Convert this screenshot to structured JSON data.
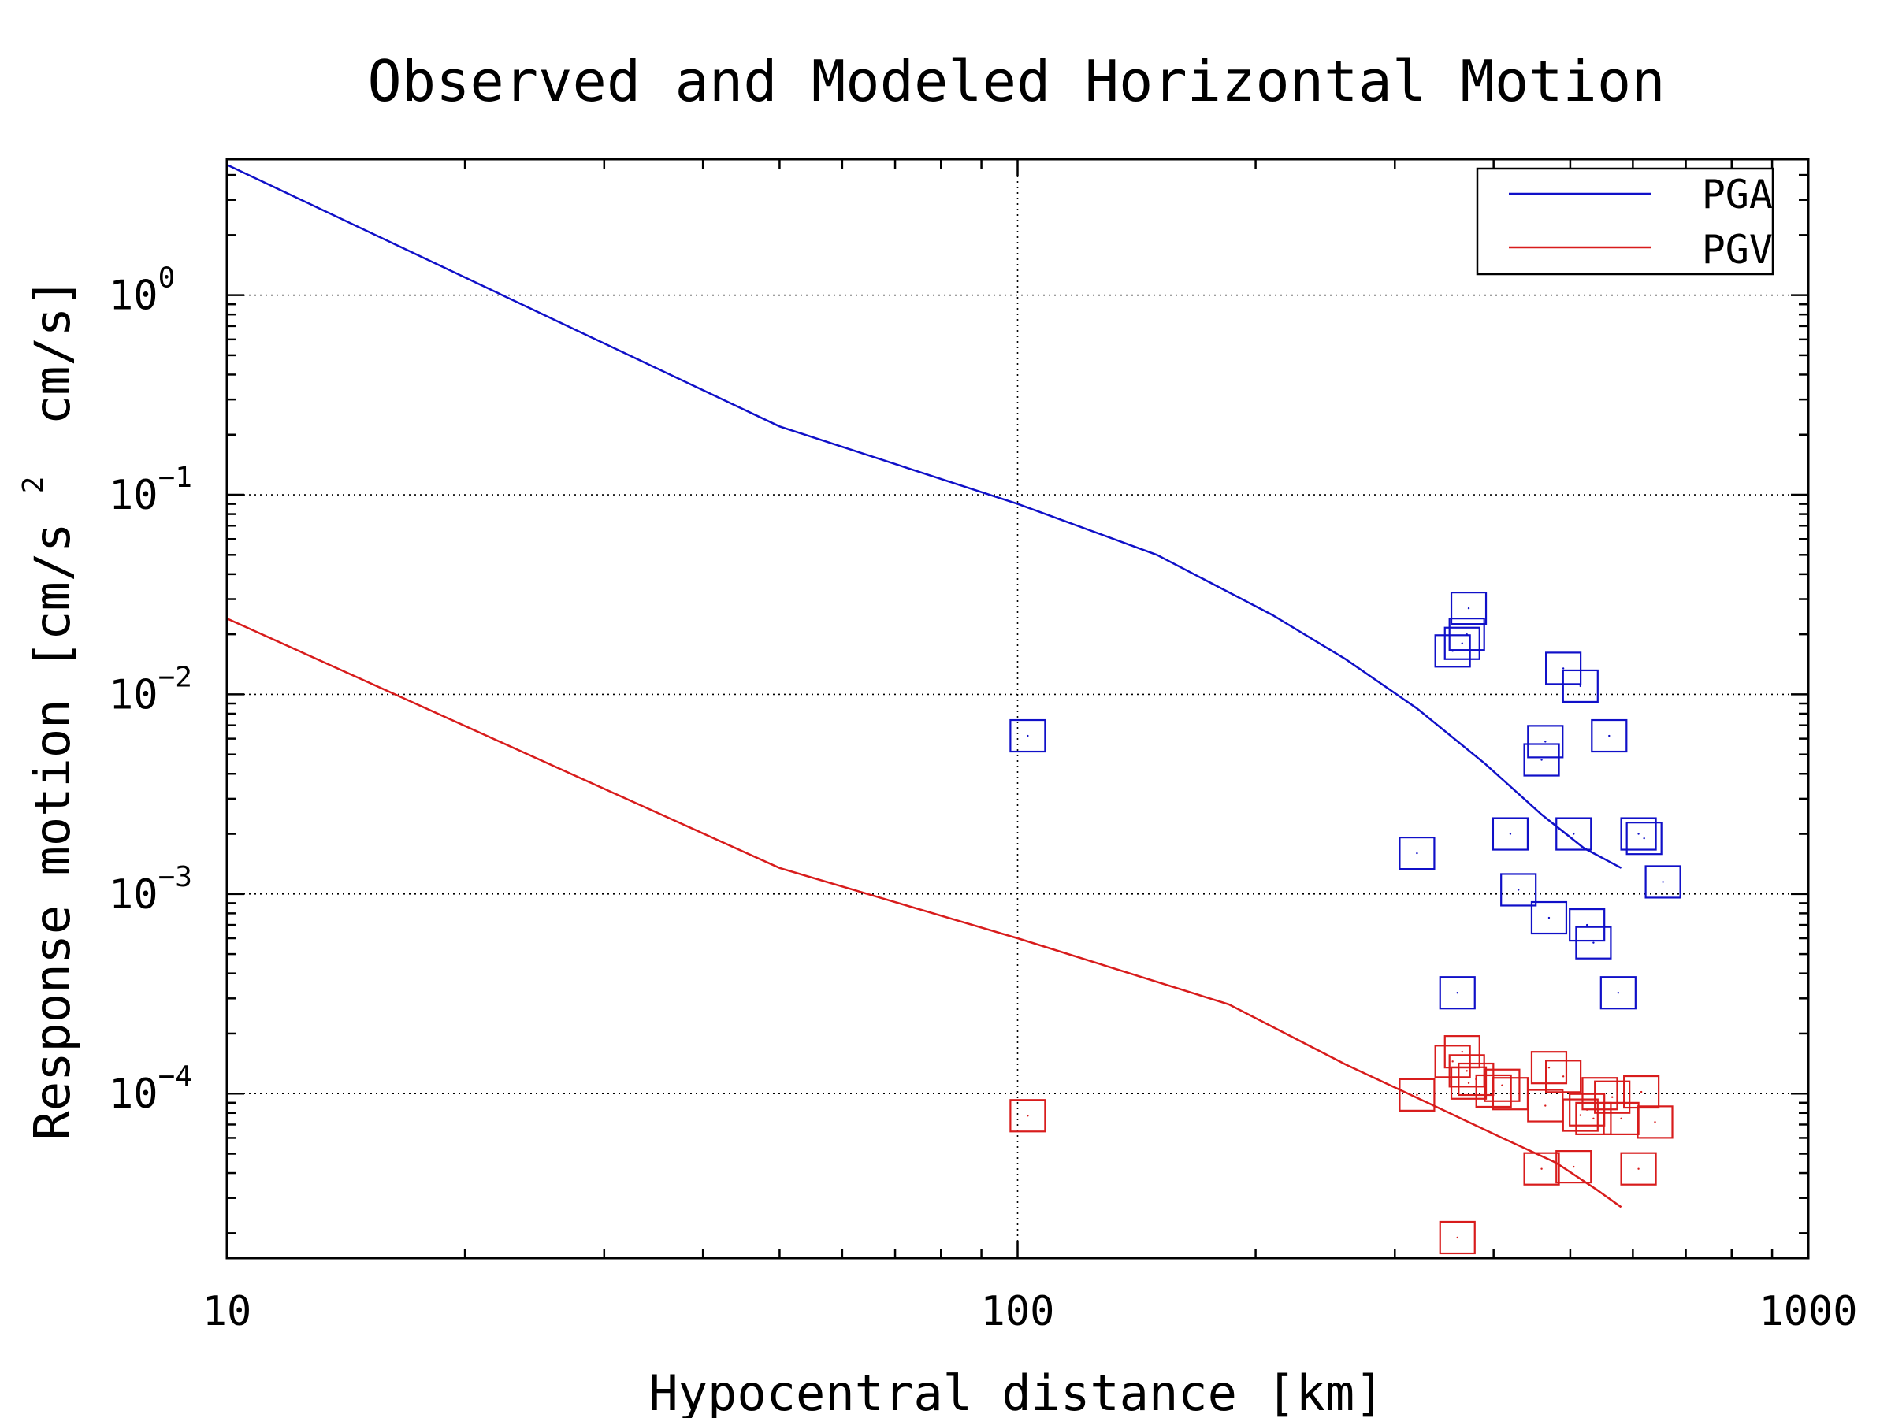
{
  "chart_data": {
    "type": "scatter",
    "title": "Observed and Modeled Horizontal Motion",
    "xlabel": "Hypocentral distance [km]",
    "ylabel": "Response motion [cm/s",
    "ylabel_sup": "2",
    "ylabel_tail": "cm/s]",
    "x_scale": "log",
    "y_scale": "log",
    "xlim": [
      10,
      1000
    ],
    "ylim": [
      1.5e-05,
      4.8
    ],
    "x_ticks": [
      {
        "value": 10,
        "label": "10"
      },
      {
        "value": 100,
        "label": "100"
      },
      {
        "value": 1000,
        "label": "1000"
      }
    ],
    "y_ticks": [
      {
        "value": 1,
        "base": "10",
        "exp": "0"
      },
      {
        "value": 0.1,
        "base": "10",
        "exp": "−1"
      },
      {
        "value": 0.01,
        "base": "10",
        "exp": "−2"
      },
      {
        "value": 0.001,
        "base": "10",
        "exp": "−3"
      },
      {
        "value": 0.0001,
        "base": "10",
        "exp": "−4"
      }
    ],
    "grid": true,
    "legend_position": "top-right",
    "series": [
      {
        "name": "PGA",
        "color": "#1010c8",
        "line": [
          [
            10,
            4.5
          ],
          [
            50,
            0.22
          ],
          [
            100,
            0.09
          ],
          [
            150,
            0.05
          ],
          [
            210,
            0.025
          ],
          [
            260,
            0.015
          ],
          [
            320,
            0.0085
          ],
          [
            390,
            0.0045
          ],
          [
            460,
            0.0025
          ],
          [
            520,
            0.0017
          ],
          [
            580,
            0.00135
          ]
        ],
        "points": [
          [
            103,
            0.0062
          ],
          [
            320,
            0.0016
          ],
          [
            355,
            0.0165
          ],
          [
            365,
            0.018
          ],
          [
            370,
            0.02
          ],
          [
            372,
            0.027
          ],
          [
            360,
            0.00032
          ],
          [
            420,
            0.002
          ],
          [
            430,
            0.00105
          ],
          [
            460,
            0.0047
          ],
          [
            465,
            0.0058
          ],
          [
            470,
            0.00076
          ],
          [
            490,
            0.0135
          ],
          [
            505,
            0.002
          ],
          [
            515,
            0.011
          ],
          [
            525,
            0.0007
          ],
          [
            535,
            0.00057
          ],
          [
            560,
            0.0062
          ],
          [
            575,
            0.00032
          ],
          [
            610,
            0.002
          ],
          [
            620,
            0.0019
          ],
          [
            655,
            0.00115
          ]
        ]
      },
      {
        "name": "PGV",
        "color": "#d81c1c",
        "line": [
          [
            10,
            0.024
          ],
          [
            50,
            0.00135
          ],
          [
            100,
            0.0006
          ],
          [
            185,
            0.00028
          ],
          [
            260,
            0.00014
          ],
          [
            330,
            9e-05
          ],
          [
            410,
            6e-05
          ],
          [
            480,
            4.5e-05
          ],
          [
            540,
            3.3e-05
          ],
          [
            580,
            2.7e-05
          ]
        ],
        "points": [
          [
            103,
            7.75e-05
          ],
          [
            320,
            9.85e-05
          ],
          [
            355,
            0.000145
          ],
          [
            360,
            1.9e-05
          ],
          [
            365,
            0.000162
          ],
          [
            370,
            0.00013
          ],
          [
            372,
            0.000113
          ],
          [
            380,
            0.000118
          ],
          [
            400,
            0.000103
          ],
          [
            410,
            0.00011
          ],
          [
            420,
            0.0001
          ],
          [
            460,
            4.2e-05
          ],
          [
            465,
            8.7e-05
          ],
          [
            470,
            0.000135
          ],
          [
            490,
            0.000122
          ],
          [
            505,
            4.3e-05
          ],
          [
            515,
            7.8e-05
          ],
          [
            525,
            8.3e-05
          ],
          [
            535,
            7.5e-05
          ],
          [
            545,
            0.0001
          ],
          [
            565,
            9.6e-05
          ],
          [
            580,
            7.5e-05
          ],
          [
            610,
            4.2e-05
          ],
          [
            615,
            0.000102
          ],
          [
            640,
            7.2e-05
          ]
        ]
      }
    ]
  }
}
